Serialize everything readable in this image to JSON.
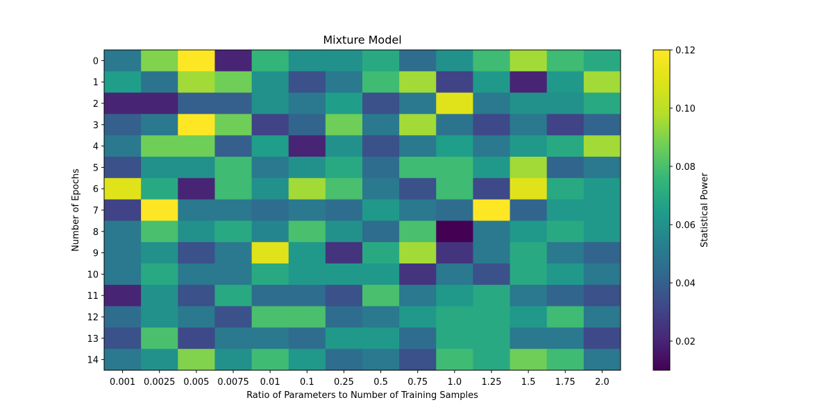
{
  "chart_data": {
    "type": "heatmap",
    "title": "Mixture Model",
    "xlabel": "Ratio of Parameters to Number of Training Samples",
    "ylabel": "Number of Epochs",
    "colorbar_label": "Statistical Power",
    "colormap": "viridis",
    "x_categories": [
      "0.001",
      "0.0025",
      "0.005",
      "0.0075",
      "0.01",
      "0.1",
      "0.25",
      "0.5",
      "0.75",
      "1.0",
      "1.25",
      "1.5",
      "1.75",
      "2.0"
    ],
    "y_categories": [
      "0",
      "1",
      "2",
      "3",
      "4",
      "5",
      "6",
      "7",
      "8",
      "9",
      "10",
      "11",
      "12",
      "13",
      "14"
    ],
    "value_range": [
      0.01,
      0.12
    ],
    "colorbar_ticks": [
      "0.02",
      "0.04",
      "0.06",
      "0.08",
      "0.10",
      "0.12"
    ],
    "colorbar_tick_values": [
      0.02,
      0.04,
      0.06,
      0.08,
      0.1,
      0.12
    ],
    "values": [
      [
        0.05,
        0.09,
        0.12,
        0.02,
        0.075,
        0.06,
        0.06,
        0.07,
        0.045,
        0.06,
        0.078,
        0.095,
        0.078,
        0.07
      ],
      [
        0.065,
        0.048,
        0.095,
        0.087,
        0.06,
        0.035,
        0.05,
        0.078,
        0.095,
        0.03,
        0.063,
        0.02,
        0.063,
        0.095
      ],
      [
        0.02,
        0.02,
        0.04,
        0.04,
        0.06,
        0.05,
        0.065,
        0.035,
        0.05,
        0.11,
        0.05,
        0.06,
        0.06,
        0.07
      ],
      [
        0.04,
        0.05,
        0.12,
        0.087,
        0.03,
        0.042,
        0.087,
        0.05,
        0.095,
        0.048,
        0.032,
        0.05,
        0.03,
        0.042
      ],
      [
        0.05,
        0.087,
        0.087,
        0.04,
        0.065,
        0.02,
        0.06,
        0.035,
        0.05,
        0.065,
        0.05,
        0.063,
        0.07,
        0.095
      ],
      [
        0.035,
        0.06,
        0.06,
        0.078,
        0.05,
        0.06,
        0.07,
        0.045,
        0.078,
        0.078,
        0.063,
        0.095,
        0.042,
        0.05
      ],
      [
        0.11,
        0.07,
        0.02,
        0.078,
        0.06,
        0.095,
        0.08,
        0.05,
        0.035,
        0.078,
        0.032,
        0.11,
        0.07,
        0.063
      ],
      [
        0.03,
        0.12,
        0.05,
        0.05,
        0.045,
        0.05,
        0.045,
        0.063,
        0.05,
        0.045,
        0.12,
        0.042,
        0.063,
        0.063
      ],
      [
        0.05,
        0.08,
        0.06,
        0.07,
        0.055,
        0.08,
        0.06,
        0.045,
        0.08,
        0.01,
        0.05,
        0.063,
        0.07,
        0.063
      ],
      [
        0.05,
        0.06,
        0.035,
        0.05,
        0.11,
        0.063,
        0.025,
        0.07,
        0.095,
        0.025,
        0.05,
        0.07,
        0.05,
        0.042
      ],
      [
        0.05,
        0.07,
        0.05,
        0.05,
        0.07,
        0.063,
        0.063,
        0.063,
        0.025,
        0.05,
        0.035,
        0.07,
        0.063,
        0.05
      ],
      [
        0.02,
        0.06,
        0.035,
        0.07,
        0.045,
        0.045,
        0.035,
        0.08,
        0.05,
        0.063,
        0.07,
        0.05,
        0.042,
        0.035
      ],
      [
        0.045,
        0.06,
        0.05,
        0.035,
        0.08,
        0.08,
        0.045,
        0.05,
        0.063,
        0.07,
        0.07,
        0.063,
        0.078,
        0.05
      ],
      [
        0.035,
        0.08,
        0.032,
        0.05,
        0.05,
        0.045,
        0.063,
        0.063,
        0.045,
        0.07,
        0.07,
        0.05,
        0.05,
        0.032
      ],
      [
        0.05,
        0.06,
        0.09,
        0.06,
        0.078,
        0.063,
        0.045,
        0.05,
        0.035,
        0.078,
        0.07,
        0.087,
        0.078,
        0.05
      ]
    ]
  }
}
